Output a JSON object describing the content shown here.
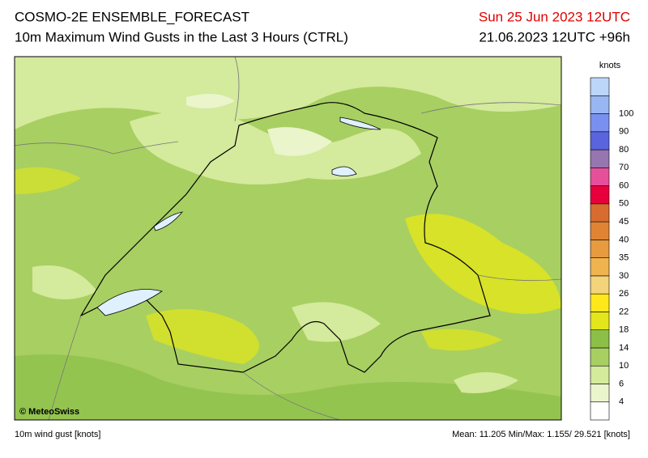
{
  "header": {
    "title": "COSMO-2E ENSEMBLE_FORECAST",
    "subtitle": "10m Maximum Wind Gusts in the Last 3 Hours (CTRL)",
    "valid_time": "Sun 25 Jun 2023 12UTC",
    "run_time": "21.06.2023 12UTC +96h"
  },
  "map": {
    "copyright": "© MeteoSwiss"
  },
  "legend": {
    "unit": "knots",
    "labels": [
      4,
      6,
      10,
      14,
      18,
      22,
      26,
      30,
      35,
      40,
      45,
      50,
      60,
      70,
      80,
      90,
      100
    ],
    "colors": [
      "#ffffff",
      "#eaf5cc",
      "#d4ea9c",
      "#a8cf62",
      "#8cbf48",
      "#e2e61a",
      "#ffe81a",
      "#f3d47a",
      "#efb44e",
      "#e89a3e",
      "#e08434",
      "#d86c30",
      "#e8003c",
      "#e6509a",
      "#9676b0",
      "#5a64dc",
      "#7a90f0",
      "#98b6f2",
      "#bcd6fa"
    ]
  },
  "footer": {
    "variable": "10m wind gust [knots]",
    "stats": "Mean:  11.205 Min/Max:   1.155/ 29.521 [knots]"
  }
}
